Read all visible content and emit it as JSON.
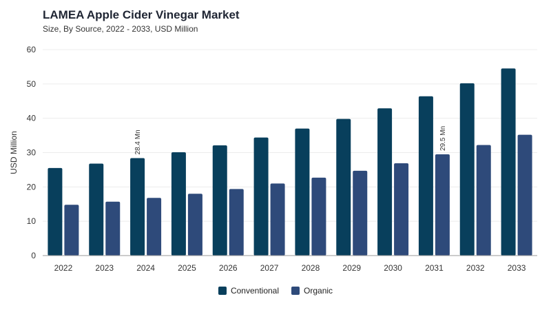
{
  "header": {
    "title": "LAMEA Apple Cider Vinegar Market",
    "subtitle": "Size, By Source, 2022 - 2033, USD Million"
  },
  "colors": {
    "conventional": "#083f5c",
    "organic": "#2e4a7a",
    "grid": "#ececec",
    "axis": "#999999"
  },
  "chart_data": {
    "type": "bar",
    "categories": [
      "2022",
      "2023",
      "2024",
      "2025",
      "2026",
      "2027",
      "2028",
      "2029",
      "2030",
      "2031",
      "2032",
      "2033"
    ],
    "series": [
      {
        "name": "Conventional",
        "values": [
          25.5,
          26.8,
          28.4,
          30.1,
          32.1,
          34.4,
          37.0,
          39.8,
          42.9,
          46.4,
          50.2,
          54.5
        ]
      },
      {
        "name": "Organic",
        "values": [
          14.8,
          15.7,
          16.8,
          18.0,
          19.4,
          21.0,
          22.7,
          24.7,
          26.9,
          29.5,
          32.2,
          35.2
        ]
      }
    ],
    "title": "LAMEA Apple Cider Vinegar Market",
    "xlabel": "",
    "ylabel": "USD Million",
    "ylim": [
      0,
      60
    ],
    "yticks": [
      0,
      10,
      20,
      30,
      40,
      50,
      60
    ],
    "grid": true,
    "legend": "bottom-center",
    "annotations": [
      {
        "category": "2024",
        "series": "Conventional",
        "text": "28.4 Mn"
      },
      {
        "category": "2031",
        "series": "Organic",
        "text": "29.5 Mn"
      }
    ]
  }
}
